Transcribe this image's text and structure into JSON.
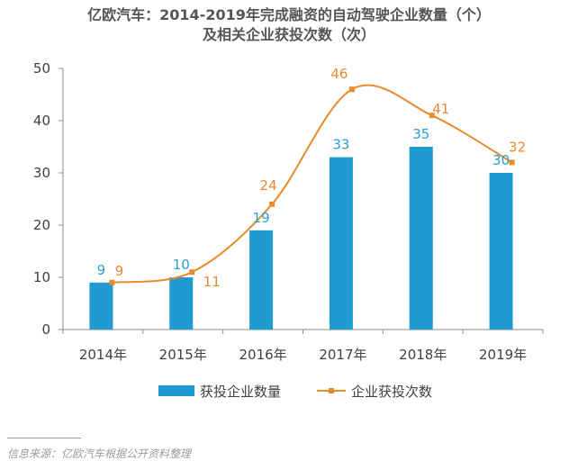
{
  "chart_data": {
    "type": "bar",
    "title": "亿欧汽车：2014-2019年完成融资的自动驾驶企业数量（个）",
    "subtitle": "及相关企业获投次数（次）",
    "categories": [
      "2014年",
      "2015年",
      "2016年",
      "2017年",
      "2018年",
      "2019年"
    ],
    "series": [
      {
        "name": "获投企业数量",
        "type": "bar",
        "color": "#1f9bd1",
        "values": [
          9,
          10,
          19,
          33,
          35,
          30
        ]
      },
      {
        "name": "企业获投次数",
        "type": "line",
        "smooth": true,
        "color": "#e88b2e",
        "values": [
          9,
          11,
          24,
          46,
          41,
          32
        ]
      }
    ],
    "ylim": [
      0,
      50
    ],
    "yticks": [
      0,
      10,
      20,
      30,
      40,
      50
    ],
    "grid": false,
    "legend": "bottom"
  },
  "source": "信息来源：亿欧汽车根据公开资料整理"
}
